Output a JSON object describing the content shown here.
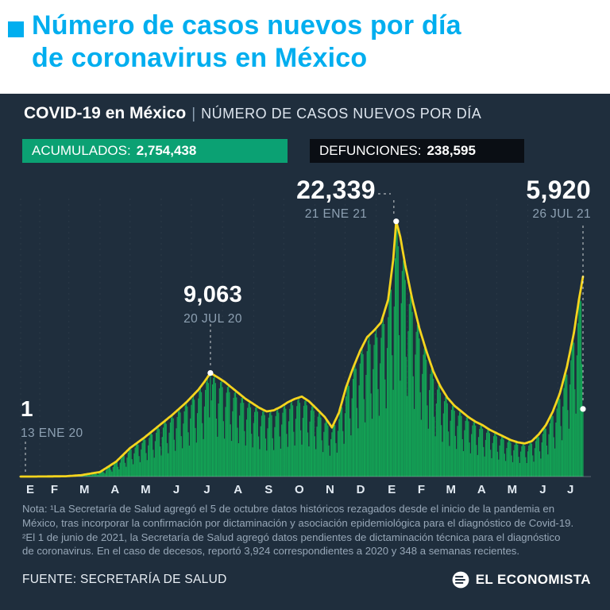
{
  "header": {
    "title_line1": "Número de casos nuevos por día",
    "title_line2": "de coronavirus en México"
  },
  "subheader": {
    "bold": "COVID-19 en México",
    "separator": "|",
    "rest": "NÚMERO DE CASOS NUEVOS POR DÍA"
  },
  "badges": {
    "acumulados_label": "ACUMULADOS:",
    "acumulados_value": "2,754,438",
    "defunciones_label": "DEFUNCIONES:",
    "defunciones_value": "238,595"
  },
  "chart_data": {
    "type": "bar",
    "title": "Número de casos nuevos por día de coronavirus en México",
    "xlabel": "",
    "ylabel": "casos nuevos por día",
    "x_axis_months": [
      "E",
      "F",
      "M",
      "A",
      "M",
      "J",
      "J",
      "A",
      "S",
      "O",
      "N",
      "D",
      "E",
      "F",
      "M",
      "A",
      "M",
      "J",
      "J"
    ],
    "month_start_days": [
      0,
      19,
      48,
      79,
      109,
      140,
      170,
      201,
      232,
      262,
      293,
      323,
      354,
      385,
      413,
      444,
      474,
      505,
      535
    ],
    "total_days": 561,
    "y_max": 23500,
    "weekday_factors": [
      0.4,
      0.74,
      0.9,
      0.97,
      1.0,
      0.93,
      0.58
    ],
    "trend_line_points": [
      [
        0,
        1
      ],
      [
        20,
        4
      ],
      [
        45,
        30
      ],
      [
        60,
        120
      ],
      [
        79,
        400
      ],
      [
        95,
        1300
      ],
      [
        109,
        2500
      ],
      [
        123,
        3400
      ],
      [
        137,
        4400
      ],
      [
        151,
        5400
      ],
      [
        165,
        6500
      ],
      [
        177,
        7600
      ],
      [
        183,
        8300
      ],
      [
        189,
        9063
      ],
      [
        196,
        8700
      ],
      [
        203,
        8300
      ],
      [
        210,
        7800
      ],
      [
        217,
        7300
      ],
      [
        224,
        6800
      ],
      [
        231,
        6400
      ],
      [
        238,
        6000
      ],
      [
        245,
        5700
      ],
      [
        252,
        5800
      ],
      [
        259,
        6100
      ],
      [
        266,
        6500
      ],
      [
        273,
        6800
      ],
      [
        280,
        7000
      ],
      [
        287,
        6600
      ],
      [
        294,
        6000
      ],
      [
        303,
        5200
      ],
      [
        310,
        4300
      ],
      [
        317,
        5600
      ],
      [
        324,
        7800
      ],
      [
        331,
        9500
      ],
      [
        338,
        11000
      ],
      [
        345,
        12200
      ],
      [
        352,
        12800
      ],
      [
        359,
        13500
      ],
      [
        366,
        15500
      ],
      [
        371,
        19000
      ],
      [
        374,
        22339
      ],
      [
        378,
        21000
      ],
      [
        383,
        18500
      ],
      [
        390,
        15500
      ],
      [
        397,
        13000
      ],
      [
        404,
        11000
      ],
      [
        411,
        9200
      ],
      [
        418,
        7900
      ],
      [
        425,
        6900
      ],
      [
        432,
        6200
      ],
      [
        439,
        5700
      ],
      [
        446,
        5200
      ],
      [
        453,
        4800
      ],
      [
        460,
        4500
      ],
      [
        467,
        4100
      ],
      [
        474,
        3800
      ],
      [
        481,
        3500
      ],
      [
        488,
        3200
      ],
      [
        495,
        3000
      ],
      [
        502,
        2900
      ],
      [
        509,
        3100
      ],
      [
        516,
        3700
      ],
      [
        523,
        4500
      ],
      [
        530,
        5700
      ],
      [
        537,
        7300
      ],
      [
        544,
        9600
      ],
      [
        551,
        12600
      ],
      [
        556,
        15500
      ],
      [
        560,
        17500
      ]
    ],
    "bar_overrides": {
      "189": 9063,
      "374": 22339,
      "560": 5920
    },
    "annotations": [
      {
        "id": "first",
        "value_label": "1",
        "date_label": "13 ENE 20",
        "day": 0,
        "value": 1
      },
      {
        "id": "peak1",
        "value_label": "9,063",
        "date_label": "20 JUL 20",
        "day": 189,
        "value": 9063
      },
      {
        "id": "peak2",
        "value_label": "22,339",
        "date_label": "21 ENE 21",
        "day": 374,
        "value": 22339
      },
      {
        "id": "latest",
        "value_label": "5,920",
        "date_label": "26 JUL 21",
        "day": 560,
        "value": 5920
      }
    ],
    "colors": {
      "accent_cyan": "#00aeef",
      "background_dark": "#1f2e3d",
      "badge_green": "#0ba173",
      "badge_black": "#0a0e14",
      "bars": "#13a455",
      "line": "#f5d41d"
    }
  },
  "notes": {
    "lines": [
      "Nota: ¹La Secretaría de Salud agregó el 5 de octubre datos históricos rezagados desde el inicio de la pandemia en",
      "México, tras incorporar la confirmación por dictaminación y asociación epidemiológica para el diagnóstico de Covid-19.",
      "²El 1 de junio de 2021, la Secretaría de Salud agregó datos pendientes de dictaminación técnica para el diagnóstico",
      "de coronavirus. En el caso de decesos, reportó 3,924 correspondientes a 2020 y 348 a semanas recientes."
    ]
  },
  "footer": {
    "source": "FUENTE: SECRETARÍA DE SALUD",
    "brand": "EL ECONOMISTA"
  }
}
